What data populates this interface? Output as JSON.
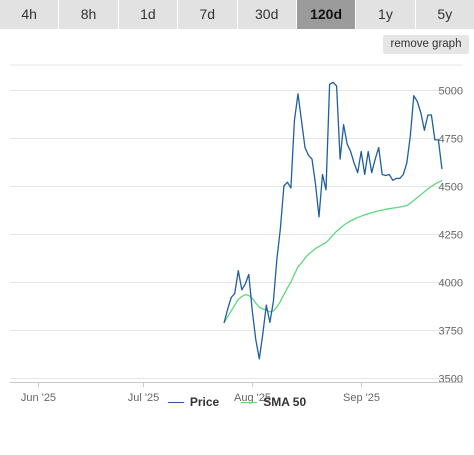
{
  "timeframes": {
    "items": [
      "4h",
      "8h",
      "1d",
      "7d",
      "30d",
      "120d",
      "1y",
      "5y"
    ],
    "active": "120d"
  },
  "remove_graph_label": "remove graph",
  "chart_data": {
    "type": "line",
    "title": "",
    "xlabel": "",
    "ylabel": "",
    "ylim": [
      3480,
      5130
    ],
    "xlim": [
      "2025-05-24",
      "2025-09-30"
    ],
    "y_ticks": [
      3500,
      3750,
      4000,
      4250,
      4500,
      4750,
      5000
    ],
    "x_ticks": [
      {
        "date": "2025-06-01",
        "label": "Jun '25"
      },
      {
        "date": "2025-07-01",
        "label": "Jul '25"
      },
      {
        "date": "2025-08-01",
        "label": "Aug '25"
      },
      {
        "date": "2025-09-01",
        "label": "Sep '25"
      }
    ],
    "grid": "horizontal",
    "legend_position": "bottom",
    "series": [
      {
        "name": "Price",
        "color": "#1f5f9f",
        "points": [
          [
            "2025-07-24",
            3790
          ],
          [
            "2025-07-25",
            3860
          ],
          [
            "2025-07-26",
            3920
          ],
          [
            "2025-07-27",
            3940
          ],
          [
            "2025-07-28",
            4060
          ],
          [
            "2025-07-29",
            3960
          ],
          [
            "2025-07-30",
            3990
          ],
          [
            "2025-07-31",
            4040
          ],
          [
            "2025-08-01",
            3850
          ],
          [
            "2025-08-02",
            3700
          ],
          [
            "2025-08-03",
            3600
          ],
          [
            "2025-08-04",
            3730
          ],
          [
            "2025-08-05",
            3880
          ],
          [
            "2025-08-06",
            3790
          ],
          [
            "2025-08-07",
            3900
          ],
          [
            "2025-08-08",
            4120
          ],
          [
            "2025-08-09",
            4280
          ],
          [
            "2025-08-10",
            4500
          ],
          [
            "2025-08-11",
            4520
          ],
          [
            "2025-08-12",
            4490
          ],
          [
            "2025-08-13",
            4840
          ],
          [
            "2025-08-14",
            4980
          ],
          [
            "2025-08-15",
            4840
          ],
          [
            "2025-08-16",
            4700
          ],
          [
            "2025-08-17",
            4660
          ],
          [
            "2025-08-18",
            4640
          ],
          [
            "2025-08-19",
            4510
          ],
          [
            "2025-08-20",
            4340
          ],
          [
            "2025-08-21",
            4560
          ],
          [
            "2025-08-22",
            4480
          ],
          [
            "2025-08-23",
            5030
          ],
          [
            "2025-08-24",
            5040
          ],
          [
            "2025-08-25",
            5020
          ],
          [
            "2025-08-26",
            4640
          ],
          [
            "2025-08-27",
            4820
          ],
          [
            "2025-08-28",
            4720
          ],
          [
            "2025-08-29",
            4680
          ],
          [
            "2025-08-30",
            4620
          ],
          [
            "2025-08-31",
            4570
          ],
          [
            "2025-09-01",
            4680
          ],
          [
            "2025-09-02",
            4560
          ],
          [
            "2025-09-03",
            4680
          ],
          [
            "2025-09-04",
            4570
          ],
          [
            "2025-09-05",
            4640
          ],
          [
            "2025-09-06",
            4700
          ],
          [
            "2025-09-07",
            4560
          ],
          [
            "2025-09-08",
            4555
          ],
          [
            "2025-09-09",
            4560
          ],
          [
            "2025-09-10",
            4530
          ],
          [
            "2025-09-11",
            4540
          ],
          [
            "2025-09-12",
            4540
          ],
          [
            "2025-09-13",
            4560
          ],
          [
            "2025-09-14",
            4620
          ],
          [
            "2025-09-15",
            4760
          ],
          [
            "2025-09-16",
            4970
          ],
          [
            "2025-09-17",
            4940
          ],
          [
            "2025-09-18",
            4880
          ],
          [
            "2025-09-19",
            4790
          ],
          [
            "2025-09-20",
            4870
          ],
          [
            "2025-09-21",
            4870
          ],
          [
            "2025-09-22",
            4740
          ],
          [
            "2025-09-23",
            4740
          ],
          [
            "2025-09-24",
            4590
          ]
        ]
      },
      {
        "name": "SMA 50",
        "color": "#5fd67f",
        "points": [
          [
            "2025-07-24",
            3790
          ],
          [
            "2025-07-25",
            3820
          ],
          [
            "2025-07-26",
            3850
          ],
          [
            "2025-07-27",
            3880
          ],
          [
            "2025-07-28",
            3910
          ],
          [
            "2025-07-29",
            3925
          ],
          [
            "2025-07-30",
            3935
          ],
          [
            "2025-07-31",
            3930
          ],
          [
            "2025-08-01",
            3915
          ],
          [
            "2025-08-02",
            3890
          ],
          [
            "2025-08-03",
            3870
          ],
          [
            "2025-08-04",
            3860
          ],
          [
            "2025-08-05",
            3855
          ],
          [
            "2025-08-06",
            3845
          ],
          [
            "2025-08-07",
            3850
          ],
          [
            "2025-08-08",
            3870
          ],
          [
            "2025-08-09",
            3900
          ],
          [
            "2025-08-10",
            3935
          ],
          [
            "2025-08-11",
            3970
          ],
          [
            "2025-08-12",
            4000
          ],
          [
            "2025-08-13",
            4040
          ],
          [
            "2025-08-14",
            4080
          ],
          [
            "2025-08-15",
            4100
          ],
          [
            "2025-08-16",
            4125
          ],
          [
            "2025-08-17",
            4145
          ],
          [
            "2025-08-18",
            4160
          ],
          [
            "2025-08-19",
            4175
          ],
          [
            "2025-08-20",
            4185
          ],
          [
            "2025-08-21",
            4195
          ],
          [
            "2025-08-22",
            4205
          ],
          [
            "2025-08-23",
            4225
          ],
          [
            "2025-08-24",
            4245
          ],
          [
            "2025-08-25",
            4265
          ],
          [
            "2025-08-26",
            4280
          ],
          [
            "2025-08-27",
            4295
          ],
          [
            "2025-08-28",
            4308
          ],
          [
            "2025-08-29",
            4318
          ],
          [
            "2025-08-30",
            4328
          ],
          [
            "2025-08-31",
            4336
          ],
          [
            "2025-09-01",
            4343
          ],
          [
            "2025-09-02",
            4350
          ],
          [
            "2025-09-03",
            4356
          ],
          [
            "2025-09-04",
            4361
          ],
          [
            "2025-09-05",
            4366
          ],
          [
            "2025-09-06",
            4371
          ],
          [
            "2025-09-07",
            4375
          ],
          [
            "2025-09-08",
            4379
          ],
          [
            "2025-09-09",
            4382
          ],
          [
            "2025-09-10",
            4385
          ],
          [
            "2025-09-11",
            4388
          ],
          [
            "2025-09-12",
            4391
          ],
          [
            "2025-09-13",
            4394
          ],
          [
            "2025-09-14",
            4398
          ],
          [
            "2025-09-15",
            4410
          ],
          [
            "2025-09-16",
            4425
          ],
          [
            "2025-09-17",
            4440
          ],
          [
            "2025-09-18",
            4455
          ],
          [
            "2025-09-19",
            4470
          ],
          [
            "2025-09-20",
            4485
          ],
          [
            "2025-09-21",
            4498
          ],
          [
            "2025-09-22",
            4510
          ],
          [
            "2025-09-23",
            4520
          ],
          [
            "2025-09-24",
            4528
          ]
        ]
      }
    ]
  }
}
